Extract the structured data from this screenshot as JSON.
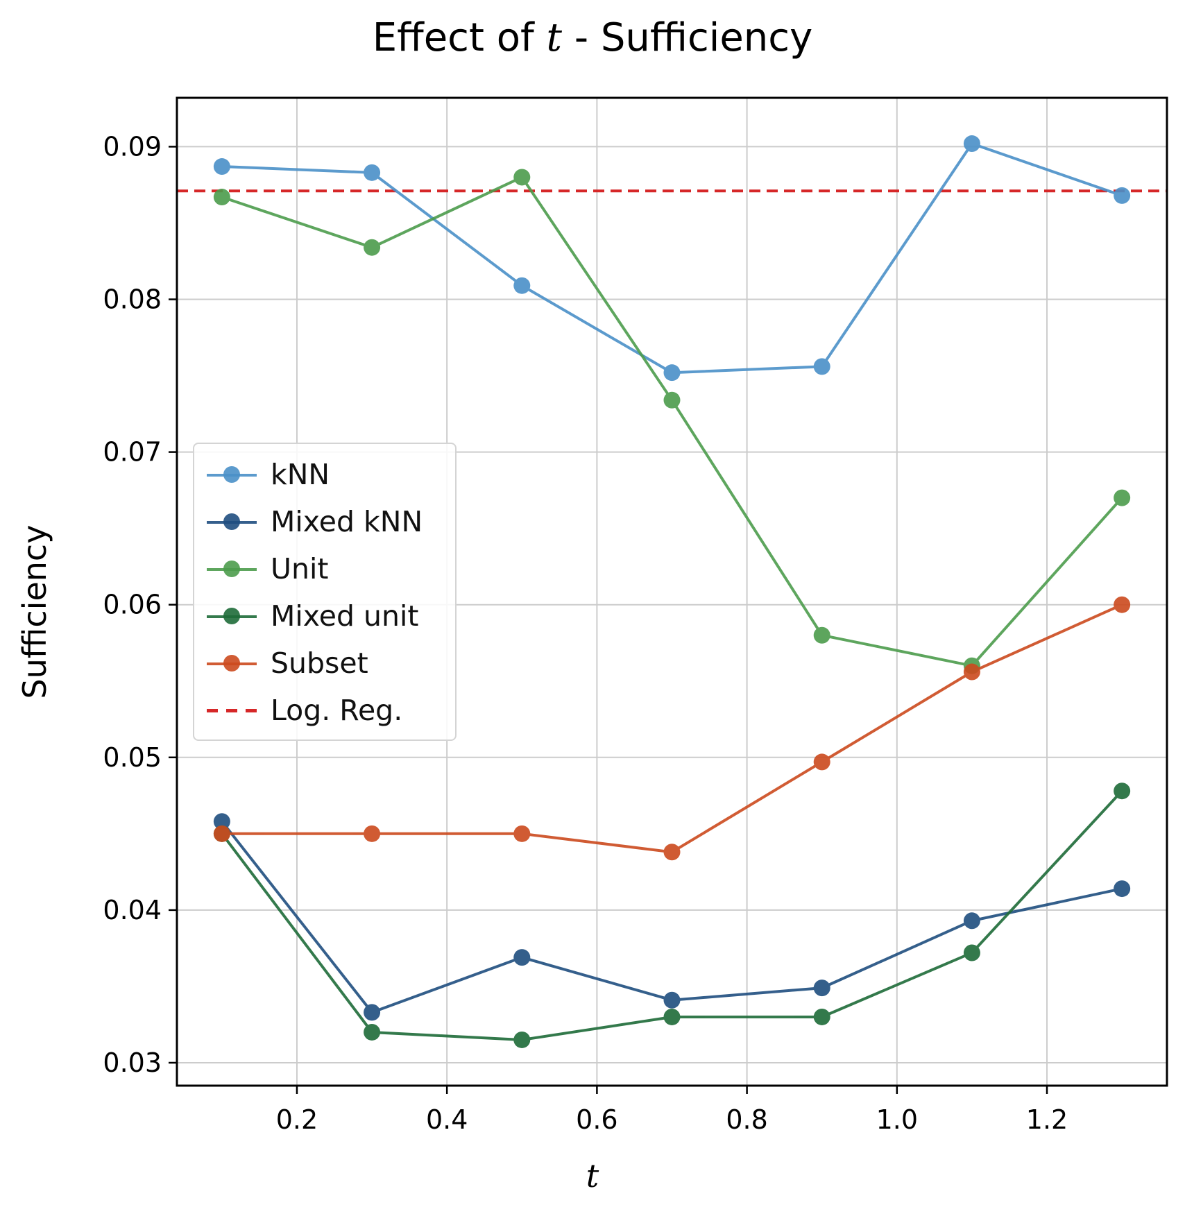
{
  "chart_data": {
    "type": "line",
    "title_prefix": "Effect of ",
    "title_var": "t",
    "title_suffix": " - Sufficiency",
    "xlabel": "t",
    "ylabel": "Sufficiency",
    "xlim": [
      0.04,
      1.36
    ],
    "ylim": [
      0.0285,
      0.0932
    ],
    "grid": true,
    "legend_position": "center-left",
    "x": [
      0.1,
      0.3,
      0.5,
      0.7,
      0.9,
      1.1,
      1.3
    ],
    "x_ticks": [
      0.2,
      0.4,
      0.6,
      0.8,
      1.0,
      1.2
    ],
    "x_tick_labels": [
      "0.2",
      "0.4",
      "0.6",
      "0.8",
      "1.0",
      "1.2"
    ],
    "y_ticks": [
      0.03,
      0.04,
      0.05,
      0.06,
      0.07,
      0.08,
      0.09
    ],
    "y_tick_labels": [
      "0.03",
      "0.04",
      "0.05",
      "0.06",
      "0.07",
      "0.08",
      "0.09"
    ],
    "series": [
      {
        "name": "kNN",
        "color": "#4a90c8",
        "values": [
          0.0887,
          0.0883,
          0.0809,
          0.0752,
          0.0756,
          0.0902,
          0.0868
        ]
      },
      {
        "name": "Mixed kNN",
        "color": "#1f4e7f",
        "values": [
          0.0458,
          0.0333,
          0.0369,
          0.0341,
          0.0349,
          0.0393,
          0.0414
        ]
      },
      {
        "name": "Unit",
        "color": "#4c9c4c",
        "values": [
          0.0867,
          0.0834,
          0.088,
          0.0734,
          0.058,
          0.056,
          0.067
        ]
      },
      {
        "name": "Mixed unit",
        "color": "#1e6b38",
        "values": [
          0.045,
          0.032,
          0.0315,
          0.033,
          0.033,
          0.0372,
          0.0478
        ]
      },
      {
        "name": "Subset",
        "color": "#cc4a1e",
        "values": [
          0.045,
          0.045,
          0.045,
          0.0438,
          0.0497,
          0.0556,
          0.06
        ]
      }
    ],
    "reference_line": {
      "name": "Log. Reg.",
      "color": "#d62728",
      "value": 0.0871,
      "style": "dashed"
    }
  }
}
